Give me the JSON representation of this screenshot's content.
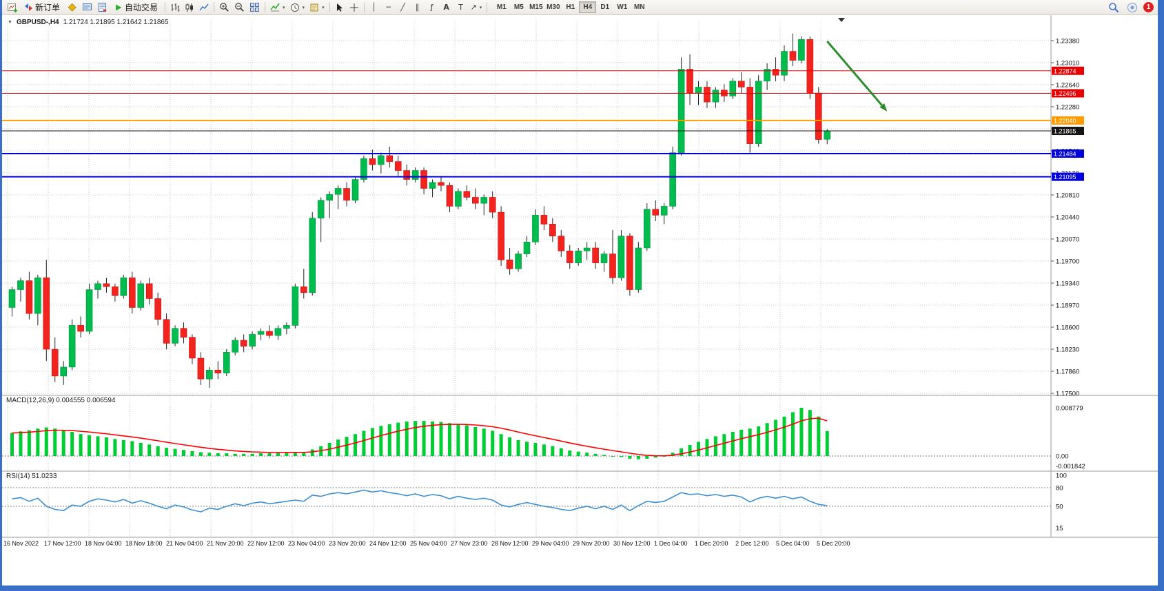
{
  "window": {
    "border_color": "#3a6fc8"
  },
  "toolbar": {
    "new_order_label": "新订单",
    "autotrading_label": "自动交易",
    "timeframes": [
      "M1",
      "M5",
      "M15",
      "M30",
      "H1",
      "H4",
      "D1",
      "W1",
      "MN"
    ],
    "active_timeframe": "H4",
    "notification_count": "1",
    "icons": [
      "new-chart",
      "new-order",
      "profiles",
      "market-watch",
      "data-window",
      "autotrading",
      "ohlc-bars",
      "candlesticks",
      "line-chart",
      "zoom-in",
      "zoom-out",
      "tile-windows",
      "indicators",
      "periods",
      "templates",
      "cursor",
      "crosshair",
      "vertical-line",
      "horizontal-line",
      "trendline",
      "channel",
      "fibonacci",
      "text",
      "label",
      "arrows",
      "search",
      "community",
      "notifications"
    ]
  },
  "chart": {
    "symbol": "GBPUSD-,H4",
    "ohlc": "1.21724 1.21895 1.21642 1.21865"
  },
  "indicators": {
    "macd": {
      "label": "MACD(12,26,9) 0.004555 0.006594"
    },
    "rsi": {
      "label": "RSI(14) 51.0233"
    }
  },
  "colors": {
    "up": "#00bc4e",
    "down": "#f2241d",
    "up_border": "#00913c",
    "down_border": "#c01212",
    "wick": "#222222",
    "grid": "#cccccc",
    "background": "#ffffff",
    "red_line": "#e60000",
    "orange_line": "#ff9c00",
    "blue_line": "#0000dd",
    "bid_line": "#141414",
    "arrow": "#2e8b2e"
  },
  "chart_data": [
    {
      "type": "candlestick",
      "title": "GBPUSD-,H4",
      "ohlc_display": {
        "open": "1.21724",
        "high": "1.21895",
        "low": "1.21642",
        "close": "1.21865"
      },
      "y_axis_ticks": [
        "1.23380",
        "1.23010",
        "1.22640",
        "1.22280",
        "1.21910",
        "1.21540",
        "1.21170",
        "1.20810",
        "1.20440",
        "1.20070",
        "1.19700",
        "1.19340",
        "1.18970",
        "1.18600",
        "1.18230",
        "1.17860",
        "1.17500"
      ],
      "x_axis_labels": [
        "16 Nov 2022",
        "17 Nov 12:00",
        "18 Nov 04:00",
        "18 Nov 18:00",
        "21 Nov 04:00",
        "21 Nov 20:00",
        "22 Nov 12:00",
        "23 Nov 04:00",
        "23 Nov 20:00",
        "24 Nov 12:00",
        "25 Nov 04:00",
        "27 Nov 23:00",
        "28 Nov 12:00",
        "29 Nov 04:00",
        "29 Nov 20:00",
        "30 Nov 12:00",
        "1 Dec 04:00",
        "1 Dec 20:00",
        "2 Dec 12:00",
        "5 Dec 04:00",
        "5 Dec 20:00"
      ],
      "horizontal_lines": [
        {
          "price": 1.22874,
          "label": "1.22874",
          "color": "#e60000",
          "width": 1
        },
        {
          "price": 1.22496,
          "label": "1.22496",
          "color": "#e60000",
          "width": 1
        },
        {
          "price": 1.2204,
          "label": "1.22040",
          "color": "#ff9c00",
          "width": 2
        },
        {
          "price": 1.21865,
          "label": "1.21865",
          "color": "#141414",
          "width": 1
        },
        {
          "price": 1.21484,
          "label": "1.21484",
          "color": "#0000dd",
          "width": 2
        },
        {
          "price": 1.21095,
          "label": "1.21095",
          "color": "#0000dd",
          "width": 2
        }
      ],
      "candles": [
        [
          1.189,
          1.1925,
          1.1875,
          1.192
        ],
        [
          1.192,
          1.194,
          1.19,
          1.1935
        ],
        [
          1.1935,
          1.195,
          1.187,
          1.188
        ],
        [
          1.188,
          1.1945,
          1.186,
          1.194
        ],
        [
          1.194,
          1.197,
          1.18,
          1.182
        ],
        [
          1.182,
          1.184,
          1.1765,
          1.1775
        ],
        [
          1.1775,
          1.18,
          1.176,
          1.179
        ],
        [
          1.179,
          1.187,
          1.1785,
          1.186
        ],
        [
          1.186,
          1.1875,
          1.184,
          1.185
        ],
        [
          1.185,
          1.193,
          1.1845,
          1.192
        ],
        [
          1.192,
          1.1935,
          1.1905,
          1.193
        ],
        [
          1.193,
          1.194,
          1.1915,
          1.1925
        ],
        [
          1.1925,
          1.193,
          1.19,
          1.191
        ],
        [
          1.191,
          1.1945,
          1.1905,
          1.194
        ],
        [
          1.194,
          1.195,
          1.188,
          1.189
        ],
        [
          1.189,
          1.1935,
          1.1885,
          1.193
        ],
        [
          1.193,
          1.194,
          1.1895,
          1.1905
        ],
        [
          1.1905,
          1.1915,
          1.186,
          1.187
        ],
        [
          1.187,
          1.188,
          1.182,
          1.183
        ],
        [
          1.183,
          1.186,
          1.1825,
          1.1855
        ],
        [
          1.1855,
          1.1865,
          1.183,
          1.184
        ],
        [
          1.184,
          1.1845,
          1.1795,
          1.1805
        ],
        [
          1.1805,
          1.1815,
          1.176,
          1.177
        ],
        [
          1.177,
          1.179,
          1.1755,
          1.1785
        ],
        [
          1.1785,
          1.18,
          1.177,
          1.178
        ],
        [
          1.178,
          1.182,
          1.1775,
          1.1815
        ],
        [
          1.1815,
          1.184,
          1.181,
          1.1835
        ],
        [
          1.1835,
          1.1845,
          1.1815,
          1.1825
        ],
        [
          1.1825,
          1.185,
          1.182,
          1.1845
        ],
        [
          1.1845,
          1.1855,
          1.1835,
          1.185
        ],
        [
          1.185,
          1.186,
          1.1838,
          1.1843
        ],
        [
          1.1843,
          1.186,
          1.1836,
          1.1855
        ],
        [
          1.1855,
          1.1865,
          1.1845,
          1.186
        ],
        [
          1.186,
          1.193,
          1.1855,
          1.1925
        ],
        [
          1.1925,
          1.1955,
          1.1905,
          1.1915
        ],
        [
          1.1915,
          1.205,
          1.191,
          1.204
        ],
        [
          1.204,
          1.2075,
          1.2,
          1.207
        ],
        [
          1.207,
          1.2085,
          1.204,
          1.208
        ],
        [
          1.208,
          1.2095,
          1.2055,
          1.209
        ],
        [
          1.209,
          1.21,
          1.206,
          1.207
        ],
        [
          1.207,
          1.211,
          1.2065,
          1.2105
        ],
        [
          1.2105,
          1.2145,
          1.21,
          1.214
        ],
        [
          1.214,
          1.2155,
          1.212,
          1.213
        ],
        [
          1.213,
          1.215,
          1.2115,
          1.2145
        ],
        [
          1.2145,
          1.216,
          1.2125,
          1.2135
        ],
        [
          1.2135,
          1.2145,
          1.211,
          1.212
        ],
        [
          1.212,
          1.213,
          1.2095,
          1.2105
        ],
        [
          1.2105,
          1.2125,
          1.21,
          1.212
        ],
        [
          1.212,
          1.2125,
          1.208,
          1.209
        ],
        [
          1.209,
          1.2105,
          1.2075,
          1.21
        ],
        [
          1.21,
          1.211,
          1.2085,
          1.2095
        ],
        [
          1.2095,
          1.21,
          1.205,
          1.206
        ],
        [
          1.206,
          1.209,
          1.2055,
          1.2085
        ],
        [
          1.2085,
          1.2095,
          1.207,
          1.2075
        ],
        [
          1.2075,
          1.209,
          1.2055,
          1.2065
        ],
        [
          1.2065,
          1.208,
          1.2045,
          1.2075
        ],
        [
          1.2075,
          1.2085,
          1.204,
          1.205
        ],
        [
          1.205,
          1.206,
          1.196,
          1.197
        ],
        [
          1.197,
          1.199,
          1.1945,
          1.1955
        ],
        [
          1.1955,
          1.1985,
          1.195,
          1.198
        ],
        [
          1.198,
          1.201,
          1.1975,
          1.2
        ],
        [
          1.2,
          1.2055,
          1.1995,
          1.2045
        ],
        [
          1.2045,
          1.206,
          1.202,
          1.203
        ],
        [
          1.203,
          1.204,
          1.2,
          1.201
        ],
        [
          1.201,
          1.202,
          1.1975,
          1.1985
        ],
        [
          1.1985,
          1.1995,
          1.1955,
          1.1965
        ],
        [
          1.1965,
          1.199,
          1.196,
          1.1985
        ],
        [
          1.1985,
          1.2,
          1.197,
          1.199
        ],
        [
          1.199,
          1.2,
          1.1955,
          1.1965
        ],
        [
          1.1965,
          1.1985,
          1.195,
          1.198
        ],
        [
          1.198,
          1.202,
          1.193,
          1.194
        ],
        [
          1.194,
          1.202,
          1.1935,
          1.201
        ],
        [
          1.201,
          1.2015,
          1.191,
          1.192
        ],
        [
          1.192,
          1.2,
          1.1915,
          1.199
        ],
        [
          1.199,
          1.2065,
          1.1985,
          1.2055
        ],
        [
          1.2055,
          1.207,
          1.2035,
          1.2045
        ],
        [
          1.2045,
          1.2065,
          1.203,
          1.206
        ],
        [
          1.206,
          1.216,
          1.2055,
          1.215
        ],
        [
          1.215,
          1.231,
          1.2145,
          1.229
        ],
        [
          1.229,
          1.2315,
          1.223,
          1.225
        ],
        [
          1.225,
          1.227,
          1.223,
          1.226
        ],
        [
          1.226,
          1.227,
          1.2225,
          1.2235
        ],
        [
          1.2235,
          1.226,
          1.2225,
          1.2255
        ],
        [
          1.2255,
          1.2265,
          1.2235,
          1.2245
        ],
        [
          1.2245,
          1.2275,
          1.224,
          1.227
        ],
        [
          1.227,
          1.2285,
          1.225,
          1.226
        ],
        [
          1.226,
          1.2275,
          1.215,
          1.2165
        ],
        [
          1.2165,
          1.228,
          1.216,
          1.227
        ],
        [
          1.227,
          1.23,
          1.2255,
          1.229
        ],
        [
          1.229,
          1.231,
          1.227,
          1.228
        ],
        [
          1.228,
          1.233,
          1.227,
          1.232
        ],
        [
          1.232,
          1.235,
          1.2295,
          1.2305
        ],
        [
          1.2305,
          1.2345,
          1.23,
          1.234
        ],
        [
          1.234,
          1.2345,
          1.224,
          1.225
        ],
        [
          1.225,
          1.226,
          1.2165,
          1.2172
        ],
        [
          1.21724,
          1.21895,
          1.21642,
          1.21865
        ]
      ],
      "annotation_arrow": {
        "from": {
          "index": 95,
          "price": 1.2337
        },
        "to": {
          "index": 102,
          "price": 1.2219
        },
        "color": "#2e8b2e"
      }
    },
    {
      "type": "bar",
      "subtype": "macd-histogram",
      "label": "MACD(12,26,9) 0.004555 0.006594",
      "signal_period": 9,
      "y_ticks": [
        "0.008779",
        "0.00",
        "-0.001842"
      ],
      "colors": {
        "histogram": "#00cc33",
        "signal": "#ff0000"
      },
      "values": [
        0.0042,
        0.0045,
        0.0047,
        0.005,
        0.0052,
        0.005,
        0.0047,
        0.0044,
        0.004,
        0.0038,
        0.0036,
        0.0034,
        0.0031,
        0.0029,
        0.0027,
        0.0024,
        0.0021,
        0.0018,
        0.0015,
        0.0013,
        0.0011,
        0.0009,
        0.0007,
        0.0006,
        0.0005,
        0.0005,
        0.0004,
        0.0004,
        0.0004,
        0.0005,
        0.0005,
        0.0006,
        0.0006,
        0.0007,
        0.0007,
        0.0012,
        0.0018,
        0.0024,
        0.003,
        0.0035,
        0.004,
        0.0046,
        0.0051,
        0.0055,
        0.0058,
        0.0061,
        0.0063,
        0.0064,
        0.0064,
        0.0063,
        0.0062,
        0.006,
        0.0058,
        0.0056,
        0.0053,
        0.005,
        0.0046,
        0.004,
        0.0034,
        0.0029,
        0.0026,
        0.0024,
        0.0021,
        0.0018,
        0.0014,
        0.001,
        0.0008,
        0.0006,
        0.0004,
        0.0002,
        0.0,
        -0.0002,
        -0.0005,
        -0.0006,
        -0.0005,
        -0.0003,
        0.0,
        0.0006,
        0.0014,
        0.002,
        0.0026,
        0.0031,
        0.0036,
        0.004,
        0.0044,
        0.0048,
        0.005,
        0.0054,
        0.006,
        0.0066,
        0.0072,
        0.008,
        0.0088,
        0.0084,
        0.0072,
        0.004555
      ]
    },
    {
      "type": "line",
      "subtype": "rsi",
      "label": "RSI(14) 51.0233",
      "levels": [
        80,
        50
      ],
      "y_ticks": [
        "100",
        "80",
        "50",
        "15"
      ],
      "color": "#3e8ed0",
      "values": [
        62,
        64,
        58,
        63,
        50,
        45,
        43,
        52,
        50,
        58,
        62,
        60,
        57,
        61,
        55,
        59,
        55,
        50,
        46,
        52,
        49,
        44,
        41,
        47,
        45,
        50,
        54,
        51,
        55,
        57,
        54,
        56,
        58,
        60,
        58,
        68,
        66,
        70,
        72,
        70,
        73,
        76,
        73,
        75,
        72,
        70,
        67,
        70,
        66,
        69,
        67,
        62,
        66,
        63,
        61,
        63,
        60,
        52,
        49,
        53,
        56,
        53,
        50,
        48,
        45,
        43,
        47,
        50,
        46,
        50,
        45,
        52,
        43,
        51,
        58,
        56,
        58,
        65,
        72,
        69,
        70,
        67,
        69,
        66,
        68,
        65,
        57,
        63,
        66,
        63,
        66,
        62,
        65,
        58,
        53,
        51.02
      ]
    }
  ]
}
